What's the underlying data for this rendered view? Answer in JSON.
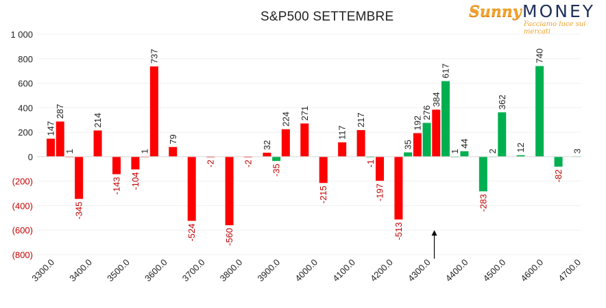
{
  "header": {
    "title": "S&P500 SETTEMBRE",
    "logo": {
      "word1": "Sunny",
      "word2": "MONEY",
      "tagline": "Facciamo luce sui mercati"
    }
  },
  "colors": {
    "negative": "#ff0000",
    "positive": "#00b050",
    "axis_negative_label": "#c00000"
  },
  "chart_data": {
    "type": "bar",
    "title": "S&P500 SETTEMBRE",
    "xlabel": "",
    "ylabel": "",
    "ylim": [
      -800,
      1000
    ],
    "yticks": [
      {
        "value": 1000,
        "label": "1 000"
      },
      {
        "value": 800,
        "label": "800"
      },
      {
        "value": 600,
        "label": "600"
      },
      {
        "value": 400,
        "label": "400"
      },
      {
        "value": 200,
        "label": "200"
      },
      {
        "value": 0,
        "label": "0"
      },
      {
        "value": -200,
        "label": "(200)"
      },
      {
        "value": -400,
        "label": "(400)"
      },
      {
        "value": -600,
        "label": "(600)"
      },
      {
        "value": -800,
        "label": "(800)"
      }
    ],
    "xticks": [
      "3300.0",
      "3400.0",
      "3500.0",
      "3600.0",
      "3700.0",
      "3800.0",
      "3900.0",
      "4000.0",
      "4100.0",
      "4200.0",
      "4300.0",
      "4400.0",
      "4500.0",
      "4600.0",
      "4700.0"
    ],
    "grid": true,
    "legend": "none",
    "series": [
      {
        "color": "#ff0000",
        "points": [
          {
            "x": 3300,
            "y": 147
          },
          {
            "x": 3325,
            "y": 287
          },
          {
            "x": 3350,
            "y": 1
          },
          {
            "x": 3375,
            "y": -345
          },
          {
            "x": 3425,
            "y": 214
          },
          {
            "x": 3475,
            "y": -143
          },
          {
            "x": 3525,
            "y": -104
          },
          {
            "x": 3550,
            "y": 1
          },
          {
            "x": 3575,
            "y": 737
          },
          {
            "x": 3625,
            "y": 79
          },
          {
            "x": 3675,
            "y": -524
          },
          {
            "x": 3725,
            "y": -2
          },
          {
            "x": 3775,
            "y": -560
          },
          {
            "x": 3825,
            "y": -2
          },
          {
            "x": 3875,
            "y": 32
          },
          {
            "x": 3925,
            "y": 224
          },
          {
            "x": 3975,
            "y": 271
          },
          {
            "x": 4025,
            "y": -215
          },
          {
            "x": 4075,
            "y": 117
          },
          {
            "x": 4125,
            "y": 217
          },
          {
            "x": 4175,
            "y": -197
          },
          {
            "x": 4225,
            "y": -513
          },
          {
            "x": 4275,
            "y": 192
          },
          {
            "x": 4325,
            "y": 384
          }
        ]
      },
      {
        "color": "#00b050",
        "points": [
          {
            "x": 3900,
            "y": -35
          },
          {
            "x": 4150,
            "y": -1
          },
          {
            "x": 4250,
            "y": 35
          },
          {
            "x": 4300,
            "y": 276
          },
          {
            "x": 4350,
            "y": 617
          },
          {
            "x": 4375,
            "y": 1
          },
          {
            "x": 4400,
            "y": 44
          },
          {
            "x": 4450,
            "y": -283
          },
          {
            "x": 4475,
            "y": 2
          },
          {
            "x": 4500,
            "y": 362
          },
          {
            "x": 4550,
            "y": 12
          },
          {
            "x": 4600,
            "y": 740
          },
          {
            "x": 4650,
            "y": -82
          },
          {
            "x": 4700,
            "y": 3
          }
        ]
      }
    ],
    "annotations": [
      {
        "type": "arrow-up",
        "x": 4320,
        "from": -800,
        "to": -600
      }
    ]
  }
}
